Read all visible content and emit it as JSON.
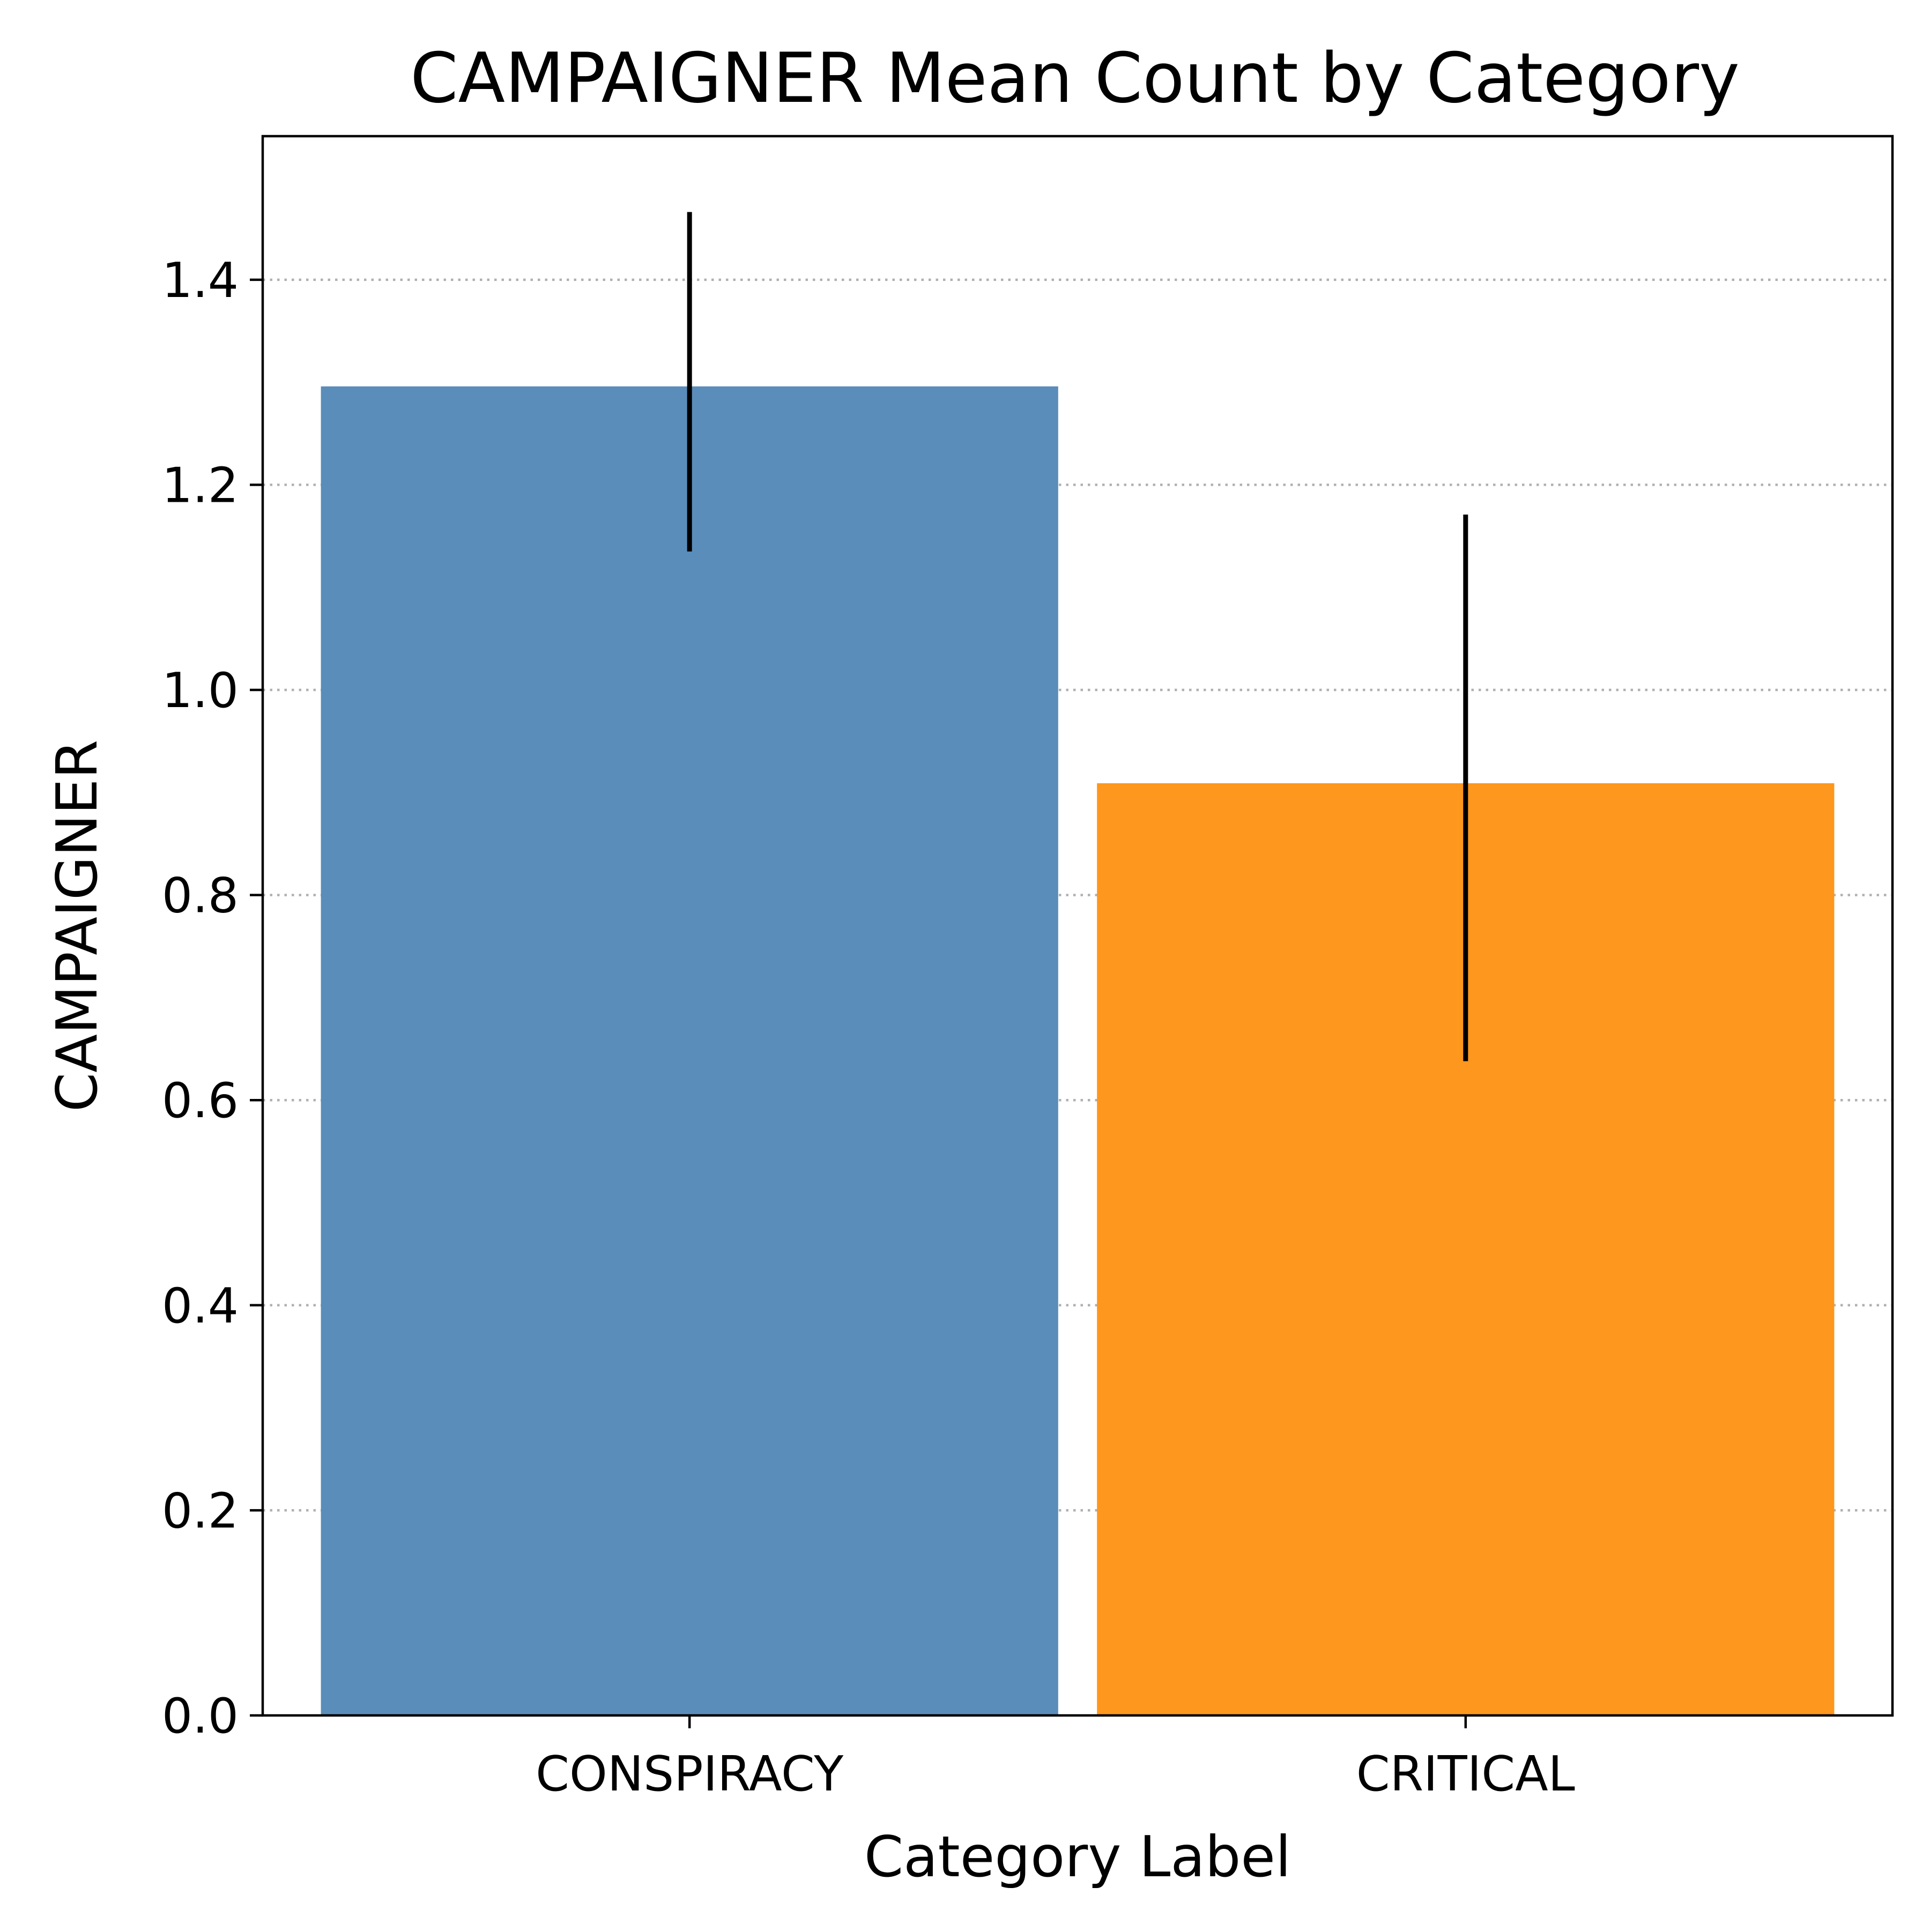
{
  "chart_data": {
    "type": "bar",
    "title": "CAMPAIGNER Mean Count by Category",
    "xlabel": "Category Label",
    "ylabel": "CAMPAIGNER",
    "categories": [
      "CONSPIRACY",
      "CRITICAL"
    ],
    "values": [
      1.296,
      0.909
    ],
    "error_low": [
      1.135,
      0.638
    ],
    "error_high": [
      1.466,
      1.171
    ],
    "colors": [
      "#5a8db9",
      "#fd971d"
    ],
    "ylim": [
      0,
      1.54
    ],
    "yticks": [
      "0.0",
      "0.2",
      "0.4",
      "0.6",
      "0.8",
      "1.0",
      "1.2",
      "1.4"
    ],
    "grid": "y-dotted",
    "legend": "none"
  }
}
